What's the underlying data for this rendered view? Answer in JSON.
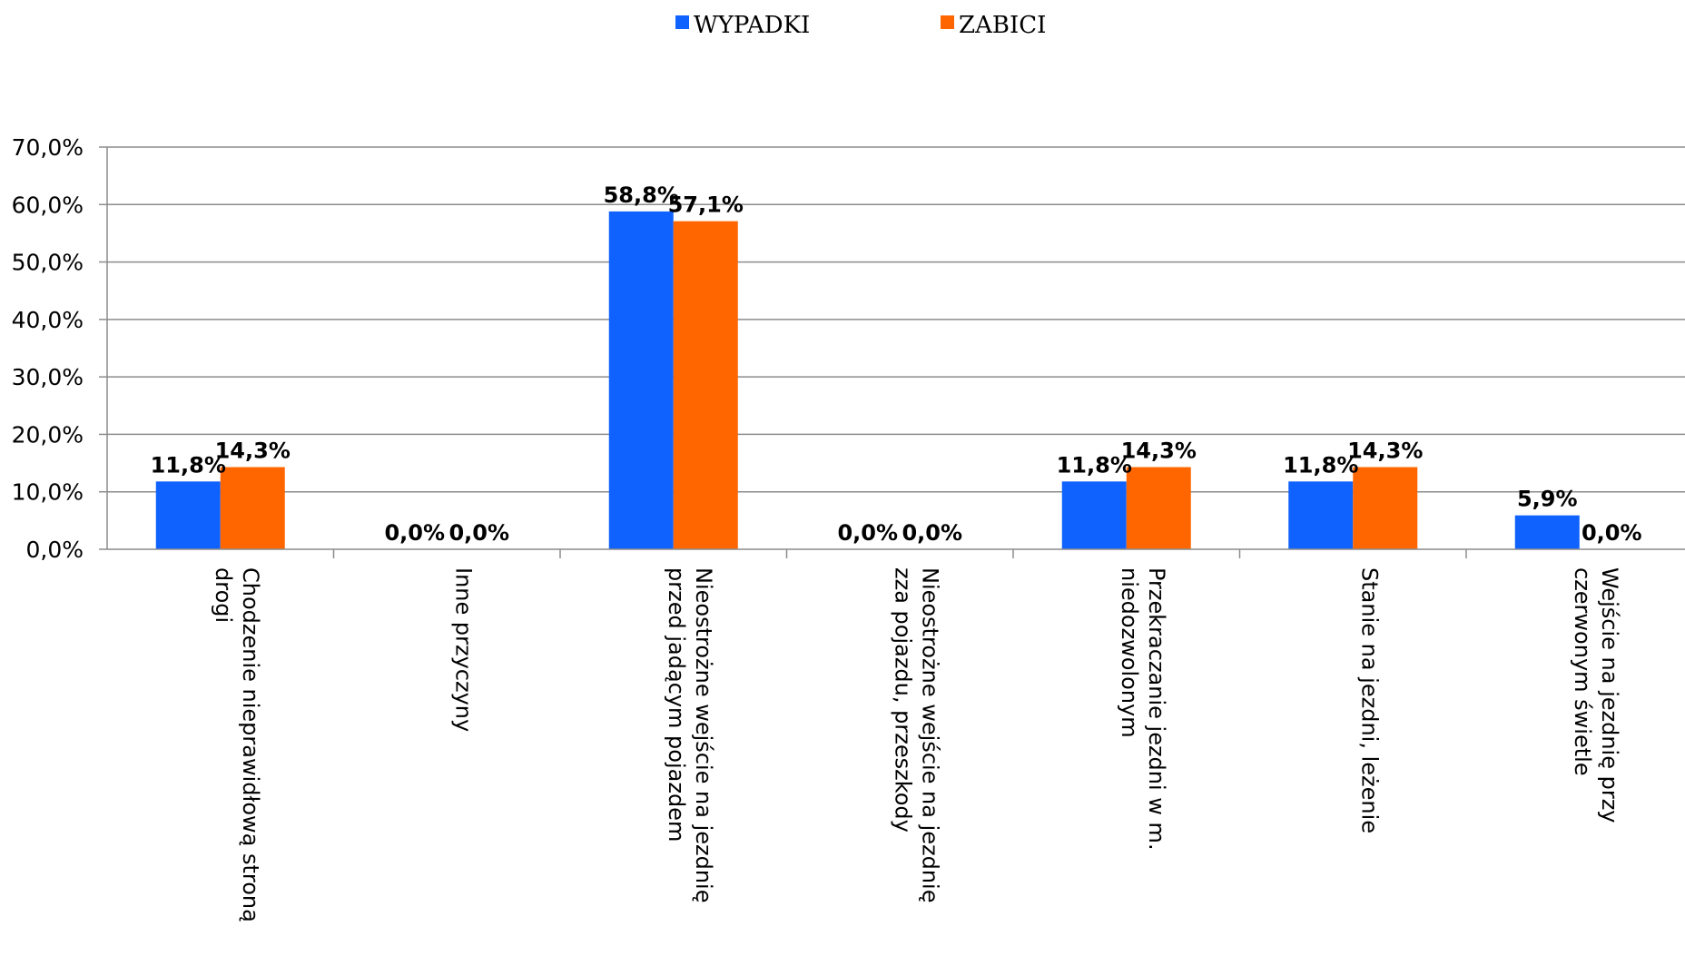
{
  "chart_data": {
    "type": "bar",
    "title": "",
    "xlabel": "",
    "ylabel": "",
    "ylim": [
      0,
      70
    ],
    "y_ticks": [
      "0,0%",
      "10,0%",
      "20,0%",
      "30,0%",
      "40,0%",
      "50,0%",
      "60,0%",
      "70,0%"
    ],
    "grid": true,
    "legend_position": "top-center",
    "categories": [
      [
        "Chodzenie nieprawidłową stroną",
        "drogi"
      ],
      [
        "Inne przyczyny"
      ],
      [
        "Nieostrożne wejście na jezdnię",
        "przed jadącym pojazdem"
      ],
      [
        "Nieostrożne wejście na jezdnię",
        "zza pojazdu, przeszkody"
      ],
      [
        "Przekraczanie jezdni w m.",
        "niedozwolonym"
      ],
      [
        "Stanie na jezdni, leżenie"
      ],
      [
        "Wejście na jezdnię przy",
        "czerwonym świetle"
      ]
    ],
    "series": [
      {
        "name": "WYPADKI",
        "color": "#0F62FE",
        "values": [
          11.8,
          0.0,
          58.8,
          0.0,
          11.8,
          11.8,
          5.9
        ],
        "labels": [
          "11,8%",
          "0,0%",
          "58,8%",
          "0,0%",
          "11,8%",
          "11,8%",
          "5,9%"
        ]
      },
      {
        "name": "ZABICI",
        "color": "#FF6600",
        "values": [
          14.3,
          0.0,
          57.1,
          0.0,
          14.3,
          14.3,
          0.0
        ],
        "labels": [
          "14,3%",
          "0,0%",
          "57,1%",
          "0,0%",
          "14,3%",
          "14,3%",
          "0,0%"
        ]
      }
    ]
  }
}
